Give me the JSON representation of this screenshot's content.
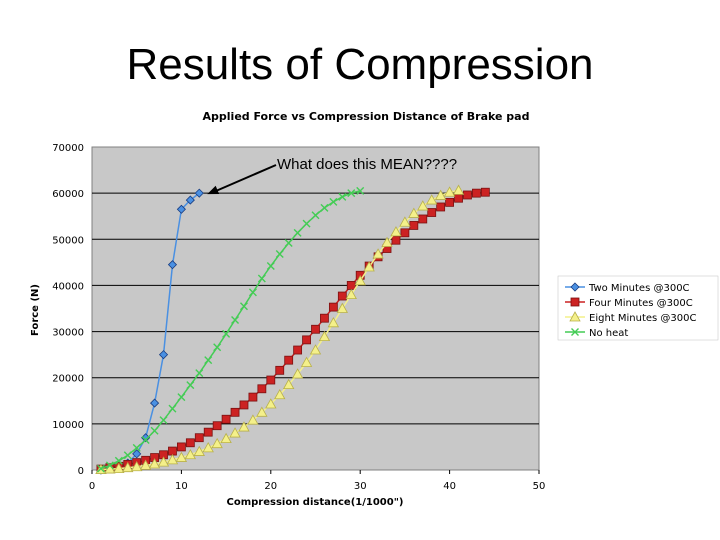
{
  "slide": {
    "title": "Results of Compression"
  },
  "chart_data": {
    "type": "line",
    "title": "Applied Force vs Compression Distance of Brake pad",
    "xlabel": "Compression distance(1/1000\")",
    "ylabel": "Force (N)",
    "xlim": [
      0,
      50
    ],
    "ylim": [
      0,
      70000
    ],
    "x_ticks": [
      "0",
      "10",
      "20",
      "30",
      "40",
      "50"
    ],
    "y_ticks": [
      "0",
      "10000",
      "20000",
      "30000",
      "40000",
      "50000",
      "60000",
      "70000"
    ],
    "grid": "horizontal",
    "plot_background": "#c8c8c8",
    "legend_position": "right",
    "annotation": {
      "text": "What does this MEAN????",
      "target": [
        12,
        60000
      ]
    },
    "series": [
      {
        "name": "Two Minutes @300C",
        "color": "#4a90e2",
        "marker": "diamond",
        "points": [
          [
            1,
            0
          ],
          [
            2,
            300
          ],
          [
            3,
            700
          ],
          [
            4,
            1500
          ],
          [
            5,
            3500
          ],
          [
            6,
            7000
          ],
          [
            7,
            14500
          ],
          [
            8,
            25000
          ],
          [
            9,
            44500
          ],
          [
            10,
            56500
          ],
          [
            11,
            58500
          ],
          [
            12,
            60000
          ]
        ]
      },
      {
        "name": "Four Minutes @300C",
        "color": "#cc2222",
        "marker": "square",
        "points": [
          [
            1,
            200
          ],
          [
            2,
            500
          ],
          [
            3,
            800
          ],
          [
            4,
            1200
          ],
          [
            5,
            1600
          ],
          [
            6,
            2100
          ],
          [
            7,
            2700
          ],
          [
            8,
            3300
          ],
          [
            9,
            4100
          ],
          [
            10,
            5000
          ],
          [
            11,
            5900
          ],
          [
            12,
            7000
          ],
          [
            13,
            8200
          ],
          [
            14,
            9600
          ],
          [
            15,
            11000
          ],
          [
            16,
            12500
          ],
          [
            17,
            14100
          ],
          [
            18,
            15800
          ],
          [
            19,
            17600
          ],
          [
            20,
            19500
          ],
          [
            21,
            21600
          ],
          [
            22,
            23800
          ],
          [
            23,
            26000
          ],
          [
            24,
            28200
          ],
          [
            25,
            30500
          ],
          [
            26,
            32900
          ],
          [
            27,
            35300
          ],
          [
            28,
            37700
          ],
          [
            29,
            40000
          ],
          [
            30,
            42200
          ],
          [
            31,
            44200
          ],
          [
            32,
            46200
          ],
          [
            33,
            48000
          ],
          [
            34,
            49800
          ],
          [
            35,
            51400
          ],
          [
            36,
            53000
          ],
          [
            37,
            54400
          ],
          [
            38,
            55800
          ],
          [
            39,
            57000
          ],
          [
            40,
            58000
          ],
          [
            41,
            58900
          ],
          [
            42,
            59600
          ],
          [
            43,
            60000
          ],
          [
            44,
            60200
          ]
        ]
      },
      {
        "name": "Eight Minutes @300C",
        "color": "#f4f08a",
        "marker": "triangle",
        "points": [
          [
            1,
            100
          ],
          [
            2,
            200
          ],
          [
            3,
            300
          ],
          [
            4,
            500
          ],
          [
            5,
            700
          ],
          [
            6,
            1000
          ],
          [
            7,
            1300
          ],
          [
            8,
            1700
          ],
          [
            9,
            2200
          ],
          [
            10,
            2700
          ],
          [
            11,
            3300
          ],
          [
            12,
            4000
          ],
          [
            13,
            4800
          ],
          [
            14,
            5700
          ],
          [
            15,
            6800
          ],
          [
            16,
            8000
          ],
          [
            17,
            9300
          ],
          [
            18,
            10800
          ],
          [
            19,
            12500
          ],
          [
            20,
            14300
          ],
          [
            21,
            16300
          ],
          [
            22,
            18500
          ],
          [
            23,
            20800
          ],
          [
            24,
            23300
          ],
          [
            25,
            26000
          ],
          [
            26,
            28900
          ],
          [
            27,
            31900
          ],
          [
            28,
            35000
          ],
          [
            29,
            38000
          ],
          [
            30,
            41000
          ],
          [
            31,
            44000
          ],
          [
            32,
            46800
          ],
          [
            33,
            49300
          ],
          [
            34,
            51600
          ],
          [
            35,
            53700
          ],
          [
            36,
            55600
          ],
          [
            37,
            57200
          ],
          [
            38,
            58500
          ],
          [
            39,
            59500
          ],
          [
            40,
            60200
          ],
          [
            41,
            60600
          ]
        ]
      },
      {
        "name": "No heat",
        "color": "#44cc55",
        "marker": "x",
        "points": [
          [
            1,
            300
          ],
          [
            2,
            1000
          ],
          [
            3,
            2000
          ],
          [
            4,
            3200
          ],
          [
            5,
            4800
          ],
          [
            6,
            6500
          ],
          [
            7,
            8500
          ],
          [
            8,
            10800
          ],
          [
            9,
            13300
          ],
          [
            10,
            15800
          ],
          [
            11,
            18400
          ],
          [
            12,
            21000
          ],
          [
            13,
            23800
          ],
          [
            14,
            26600
          ],
          [
            15,
            29500
          ],
          [
            16,
            32500
          ],
          [
            17,
            35500
          ],
          [
            18,
            38500
          ],
          [
            19,
            41500
          ],
          [
            20,
            44200
          ],
          [
            21,
            46800
          ],
          [
            22,
            49200
          ],
          [
            23,
            51400
          ],
          [
            24,
            53400
          ],
          [
            25,
            55200
          ],
          [
            26,
            56800
          ],
          [
            27,
            58100
          ],
          [
            28,
            59200
          ],
          [
            29,
            60000
          ],
          [
            30,
            60500
          ]
        ]
      }
    ]
  }
}
